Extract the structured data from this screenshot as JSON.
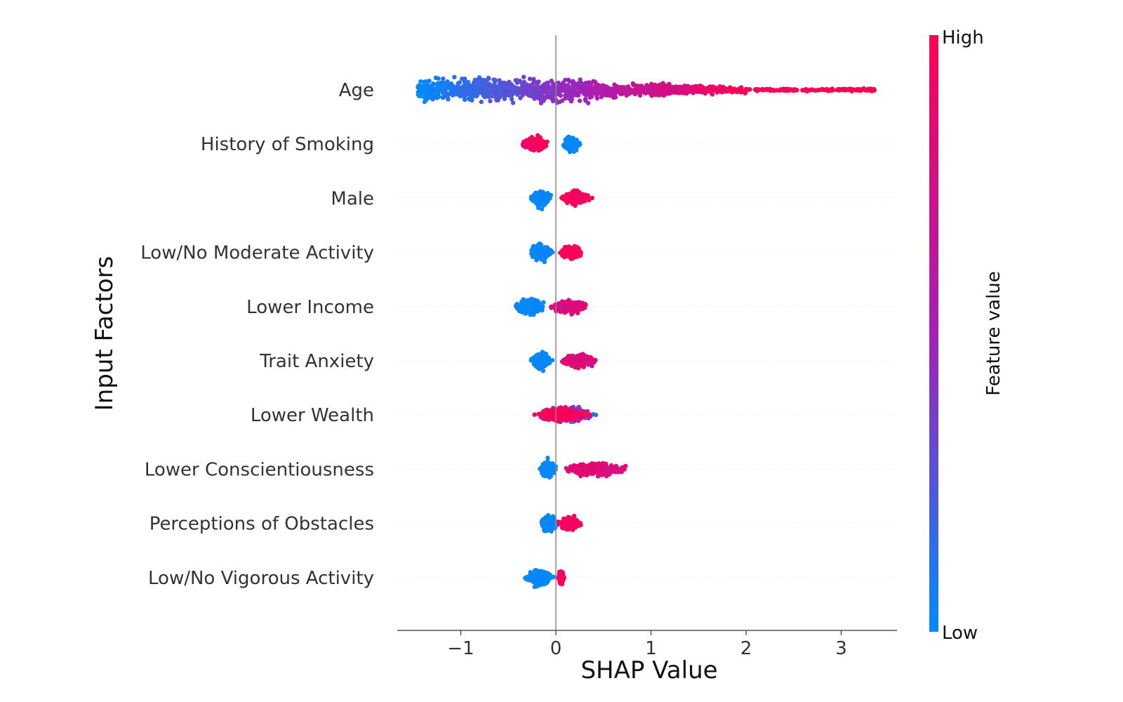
{
  "chart_data": {
    "type": "scatter",
    "subtype": "shap-beeswarm",
    "xlabel": "SHAP Value",
    "ylabel": "Input Factors",
    "xlim": [
      -1.67,
      3.6
    ],
    "xticks": [
      -1,
      0,
      1,
      2,
      3
    ],
    "xtick_labels": [
      "−1",
      "0",
      "1",
      "2",
      "3"
    ],
    "zero_line": true,
    "grid": false,
    "colorbar": {
      "label": "Feature value",
      "high_label": "High",
      "low_label": "Low",
      "low_color": "#008bfb",
      "mid_color": "#a520b7",
      "high_color": "#ff0052",
      "placement": "right"
    },
    "features": [
      {
        "name": "Age",
        "low_range": [
          -1.45,
          -0.35
        ],
        "high_range": [
          0.3,
          3.35
        ],
        "mixed_range": [
          -0.45,
          0.45
        ],
        "tail_max": 3.35
      },
      {
        "name": "History of Smoking",
        "low_range": [
          0.06,
          0.27
        ],
        "high_range": [
          -0.38,
          -0.05
        ]
      },
      {
        "name": "Male",
        "low_range": [
          -0.28,
          -0.03
        ],
        "high_range": [
          0.03,
          0.39
        ]
      },
      {
        "name": "Low/No Moderate Activity",
        "low_range": [
          -0.3,
          -0.03
        ],
        "high_range": [
          0.03,
          0.31
        ]
      },
      {
        "name": "Lower Income",
        "low_range": [
          -0.46,
          -0.08
        ],
        "high_range": [
          -0.1,
          0.4
        ]
      },
      {
        "name": "Trait Anxiety",
        "low_range": [
          -0.28,
          -0.03
        ],
        "high_range": [
          0.0,
          0.47
        ]
      },
      {
        "name": "Lower Wealth",
        "low_range": [
          -0.25,
          0.45
        ],
        "high_range": [
          -0.25,
          0.38
        ]
      },
      {
        "name": "Lower Conscientiousness",
        "low_range": [
          -0.18,
          0.02
        ],
        "high_range": [
          0.0,
          0.86
        ]
      },
      {
        "name": "Perceptions of Obstacles",
        "low_range": [
          -0.17,
          0.03
        ],
        "high_range": [
          0.0,
          0.3
        ]
      },
      {
        "name": "Low/No Vigorous Activity",
        "low_range": [
          -0.33,
          -0.02
        ],
        "high_range": [
          0.02,
          0.09
        ]
      }
    ]
  }
}
